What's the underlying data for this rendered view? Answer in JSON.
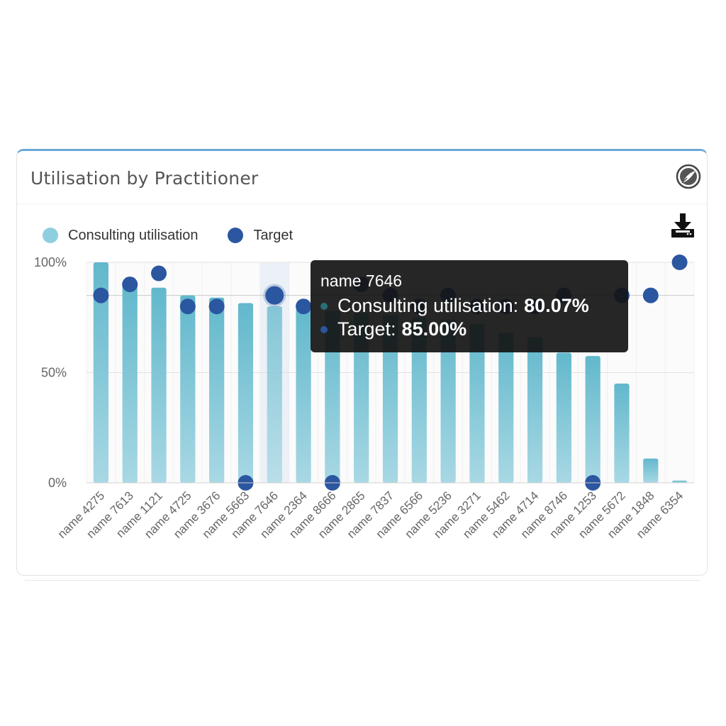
{
  "widget": {
    "title": "Utilisation by Practitioner",
    "logo_icon": "leaf-circle-logo-icon",
    "download_icon": "download-icon"
  },
  "legend": [
    {
      "label": "Consulting utilisation",
      "color": "#8ecfdf"
    },
    {
      "label": "Target",
      "color": "#2b56a0"
    }
  ],
  "tooltip": {
    "title": "name 7646",
    "rows": [
      {
        "label": "Consulting utilisation:",
        "value": "80.07%",
        "color": "#2a6f78"
      },
      {
        "label": "Target:",
        "value": "85.00%",
        "color": "#2b56a0"
      }
    ]
  },
  "colors": {
    "bar_top": "#62b8cc",
    "bar_bottom": "#a8d8e4",
    "target": "#2b56a0",
    "grid": "#e2e2e2",
    "target_line": "#c9c9c9"
  },
  "chart_data": {
    "type": "bar",
    "categories": [
      "name 4275",
      "name 7613",
      "name 1121",
      "name 4725",
      "name 3676",
      "name 5663",
      "name 7646",
      "name 2364",
      "name 8666",
      "name 2865",
      "name 7837",
      "name 6566",
      "name 5236",
      "name 3271",
      "name 5462",
      "name 4714",
      "name 8746",
      "name 1253",
      "name 5672",
      "name 1848",
      "name 6354"
    ],
    "series": [
      {
        "name": "Consulting utilisation",
        "type": "bar",
        "values": [
          100,
          90,
          88.5,
          85,
          84,
          81.5,
          80.07,
          79,
          78,
          77,
          76,
          75,
          74,
          72,
          68,
          66,
          59,
          57.5,
          45,
          11,
          1
        ]
      },
      {
        "name": "Target",
        "type": "scatter",
        "values": [
          85,
          90,
          95,
          80,
          80,
          0,
          85,
          80,
          0,
          90,
          85,
          80,
          85,
          80,
          80,
          80,
          85,
          0,
          85,
          85,
          100
        ]
      }
    ],
    "ylim": [
      0,
      100
    ],
    "yticks": [
      {
        "value": 0,
        "label": "0%"
      },
      {
        "value": 50,
        "label": "50%"
      },
      {
        "value": 100,
        "label": "100%"
      }
    ],
    "highlighted_category": "name 7646",
    "grid": true
  }
}
